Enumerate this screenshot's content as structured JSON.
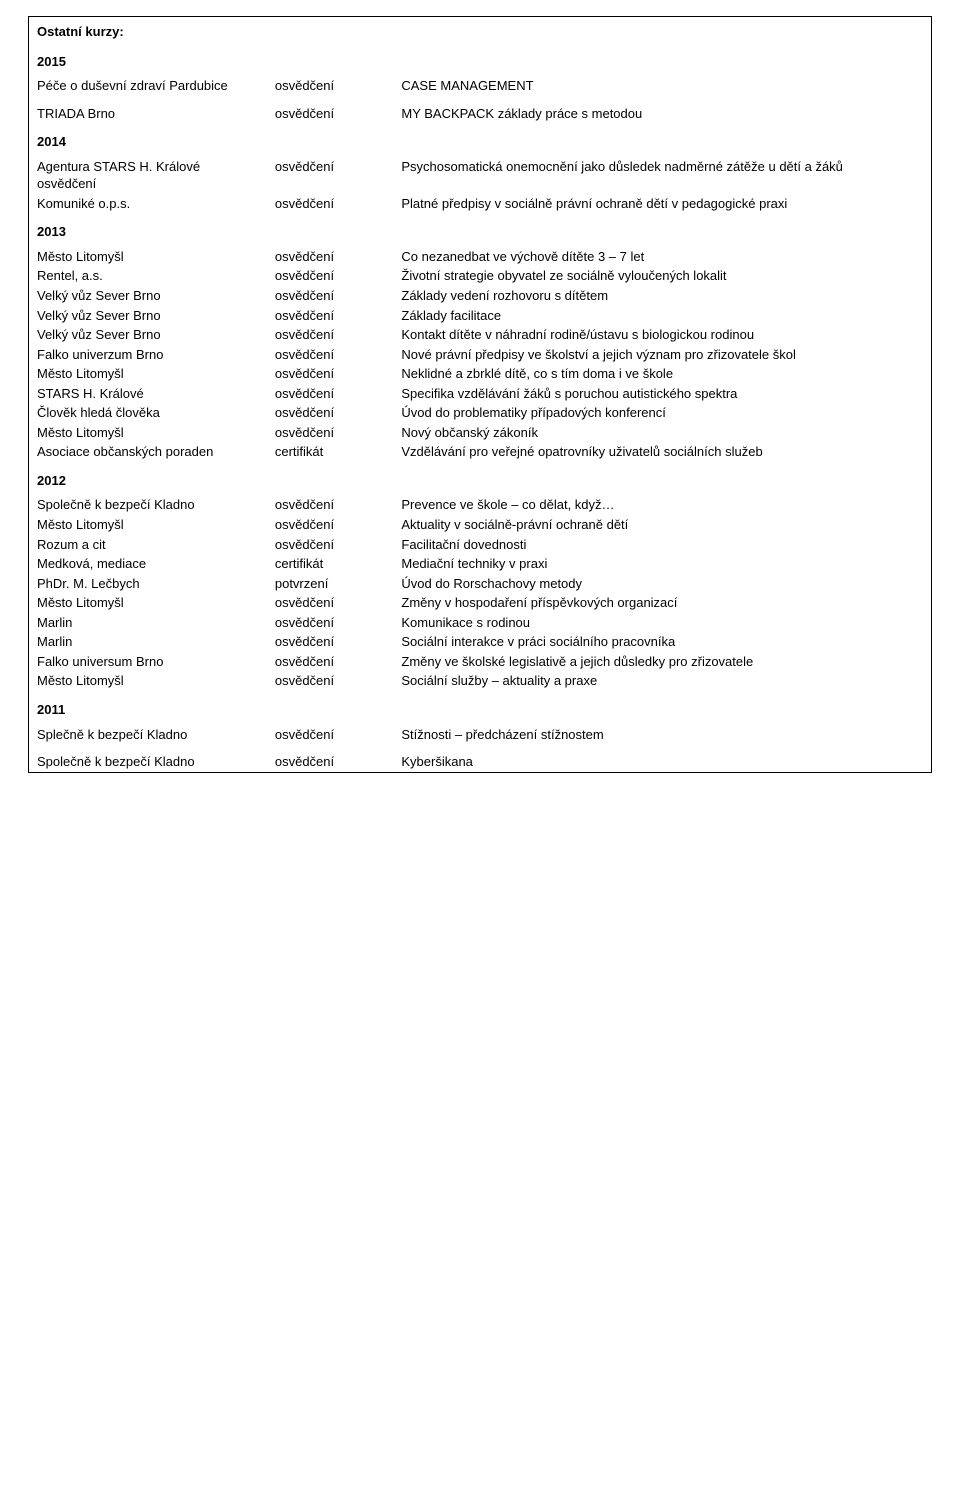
{
  "title": "Ostatní kurzy:",
  "years": {
    "y2015": {
      "label": "2015",
      "rows": [
        {
          "org": "Péče o duševní zdraví Pardubice",
          "type": "osvědčení",
          "desc": "CASE MANAGEMENT"
        },
        {
          "org": "TRIADA Brno",
          "type": "osvědčení",
          "desc": "MY BACKPACK základy práce s metodou"
        }
      ]
    },
    "y2014": {
      "label": "2014",
      "rows": [
        {
          "org": "Agentura STARS H. Králové osvědčení",
          "type": "osvědčení",
          "desc": "Psychosomatická onemocnění jako důsledek nadměrné zátěže u dětí a žáků"
        },
        {
          "org": "Komuniké o.p.s.",
          "type": "osvědčení",
          "desc": "Platné předpisy v sociálně právní ochraně dětí v pedagogické praxi"
        }
      ]
    },
    "y2013": {
      "label": "2013",
      "rows": [
        {
          "org": "Město Litomyšl",
          "type": "osvědčení",
          "desc": "Co nezanedbat ve výchově dítěte 3 – 7 let"
        },
        {
          "org": "Rentel, a.s.",
          "type": "osvědčení",
          "desc": "Životní strategie obyvatel ze sociálně vyloučených lokalit"
        },
        {
          "org": "Velký vůz Sever Brno",
          "type": "osvědčení",
          "desc": "Základy vedení rozhovoru s dítětem"
        },
        {
          "org": "Velký vůz Sever Brno",
          "type": "osvědčení",
          "desc": "Základy facilitace"
        },
        {
          "org": "Velký vůz Sever Brno",
          "type": "osvědčení",
          "desc": "Kontakt dítěte v náhradní rodině/ústavu s biologickou rodinou"
        },
        {
          "org": "Falko univerzum Brno",
          "type": "osvědčení",
          "desc": "Nové právní předpisy ve školství a jejich význam pro zřizovatele škol"
        },
        {
          "org": "Město Litomyšl",
          "type": "osvědčení",
          "desc": "Neklidné a zbrklé dítě, co s tím doma i ve škole"
        },
        {
          "org": "STARS H. Králové",
          "type": "osvědčení",
          "desc": "Specifika vzdělávání žáků s poruchou autistického spektra"
        },
        {
          "org": "Člověk hledá člověka",
          "type": "osvědčení",
          "desc": "Úvod do problematiky případových konferencí"
        },
        {
          "org": "Město Litomyšl",
          "type": "osvědčení",
          "desc": "Nový občanský zákoník"
        },
        {
          "org": "Asociace občanských poraden",
          "type": "certifikát",
          "desc": "Vzdělávání pro veřejné opatrovníky uživatelů sociálních služeb"
        }
      ]
    },
    "y2012": {
      "label": "2012",
      "rows": [
        {
          "org": "Společně k bezpečí Kladno",
          "type": "osvědčení",
          "desc": "Prevence ve škole – co dělat, když…"
        },
        {
          "org": "Město Litomyšl",
          "type": "osvědčení",
          "desc": "Aktuality v sociálně-právní ochraně dětí"
        },
        {
          "org": "Rozum a cit",
          "type": "osvědčení",
          "desc": "Facilitační dovednosti"
        },
        {
          "org": "Medková, mediace",
          "type": "certifikát",
          "desc": "Mediační techniky v praxi"
        },
        {
          "org": "PhDr. M. Lečbych",
          "type": "potvrzení",
          "desc": "Úvod do Rorschachovy metody"
        },
        {
          "org": "Město Litomyšl",
          "type": "osvědčení",
          "desc": "Změny v hospodaření příspěvkových organizací"
        },
        {
          "org": "Marlin",
          "type": "osvědčení",
          "desc": "Komunikace s rodinou"
        },
        {
          "org": "Marlin",
          "type": "osvědčení",
          "desc": "Sociální interakce v práci sociálního pracovníka"
        },
        {
          "org": "Falko universum Brno",
          "type": "osvědčení",
          "desc": "Změny ve školské legislativě a jejich důsledky pro zřizovatele"
        },
        {
          "org": "Město Litomyšl",
          "type": "osvědčení",
          "desc": "Sociální služby – aktuality a praxe"
        }
      ]
    },
    "y2011": {
      "label": "2011",
      "rows": [
        {
          "org": "Splečně k bezpečí Kladno",
          "type": "osvědčení",
          "desc": "Stížnosti – předcházení stížnostem"
        },
        {
          "org": "Společně k bezpečí Kladno",
          "type": "osvědčení",
          "desc": "Kyberšikana"
        }
      ]
    }
  }
}
